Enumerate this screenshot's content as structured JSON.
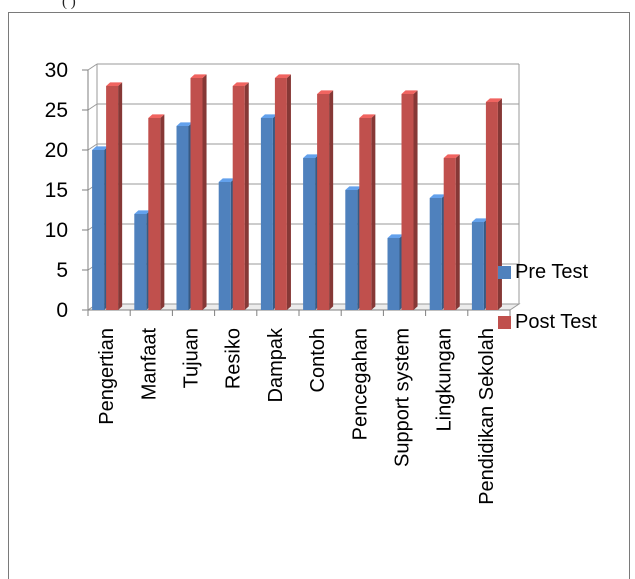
{
  "top_text": "(            )",
  "chart_data": {
    "type": "bar",
    "categories": [
      "Pengertian",
      "Manfaat",
      "Tujuan",
      "Resiko",
      "Dampak",
      "Contoh",
      "Pencegahan",
      "Support system",
      "Lingkungan",
      "Pendidikan Sekolah"
    ],
    "series": [
      {
        "name": "Pre Test",
        "values": [
          20,
          12,
          23,
          16,
          24,
          19,
          15,
          9,
          14,
          11
        ],
        "color": "#4f81bd"
      },
      {
        "name": "Post Test",
        "values": [
          28,
          24,
          29,
          28,
          29,
          27,
          24,
          27,
          19,
          26
        ],
        "color": "#c0504d"
      }
    ],
    "ylim": [
      0,
      30
    ],
    "yticks": [
      0,
      5,
      10,
      15,
      20,
      25,
      30
    ],
    "grid": true,
    "legend_position": "right",
    "style": "3d-clustered-column"
  }
}
